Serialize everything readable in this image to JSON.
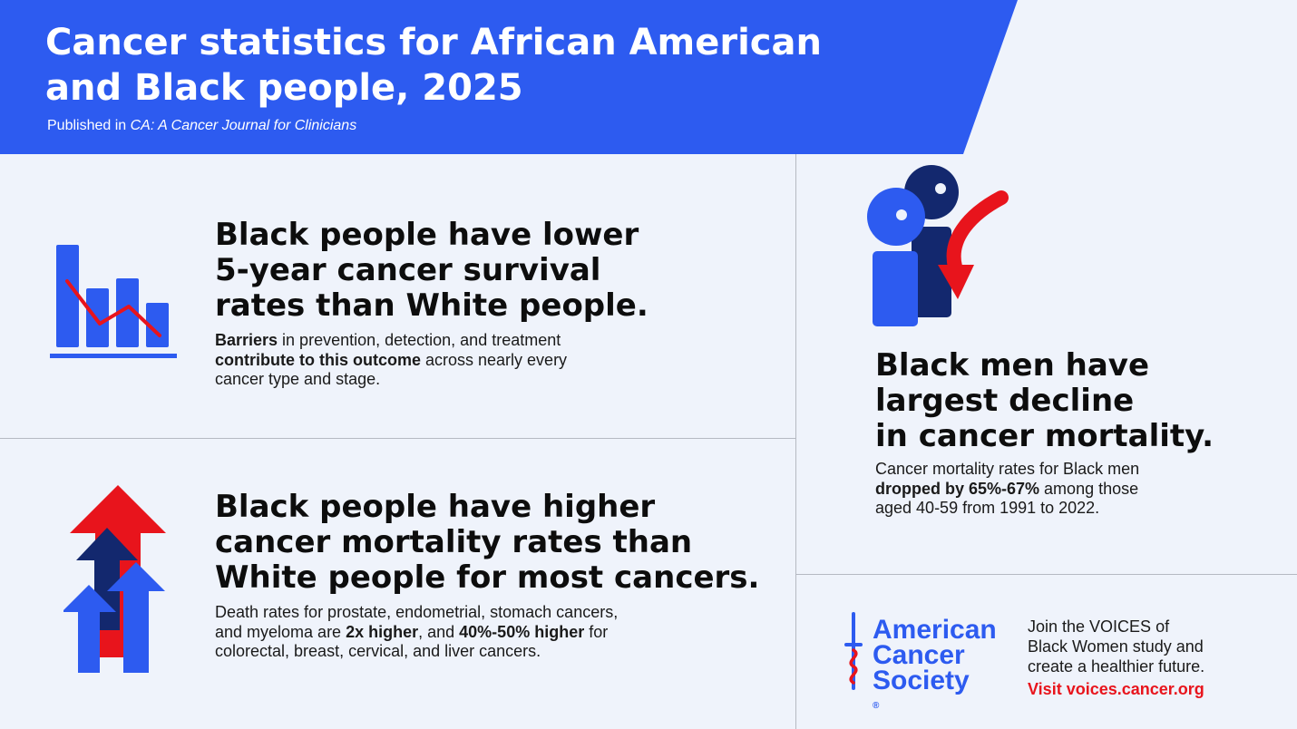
{
  "header": {
    "title_line1": "Cancer statistics for African American",
    "title_line2": "and Black people, 2025",
    "subtitle_prefix": "Published in ",
    "subtitle_journal": "CA: A Cancer Journal for Clinicians"
  },
  "section_survival": {
    "heading_line1": "Black people have lower",
    "heading_line2": "5-year cancer survival",
    "heading_line3": "rates than White people.",
    "body_bold1": "Barriers",
    "body_text1": " in prevention, detection, and treatment",
    "body_bold2": "contribute to this outcome",
    "body_text2": " across nearly every",
    "body_text3": "cancer type and stage."
  },
  "section_mortality": {
    "heading_line1": "Black people have higher",
    "heading_line2": "cancer mortality rates than",
    "heading_line3": "White people for most cancers.",
    "body_text1": "Death rates for prostate, endometrial, stomach cancers,",
    "body_text2": "and myeloma are ",
    "body_bold1": "2x higher",
    "body_text3": ", and ",
    "body_bold2": "40%-50% higher",
    "body_text4": " for",
    "body_text5": "colorectal, breast, cervical, and liver cancers."
  },
  "section_decline": {
    "heading_line1": "Black men have",
    "heading_line2": "largest decline",
    "heading_line3": "in cancer mortality.",
    "body_text1": "Cancer mortality rates for Black men",
    "body_bold1": "dropped by 65%-67%",
    "body_text2": " among those",
    "body_text3": "aged 40-59 from 1991 to 2022."
  },
  "footer": {
    "logo_line1": "American",
    "logo_line2": "Cancer",
    "logo_line3": "Society",
    "logo_reg": "®",
    "cta_line1": "Join the VOICES of",
    "cta_line2": "Black Women study and",
    "cta_line3": "create a healthier future.",
    "cta_link": "Visit voices.cancer.org"
  },
  "icons": {
    "survival": "bar-chart-decline-icon",
    "mortality": "rising-arrows-icon",
    "decline": "people-down-arrow-icon",
    "logo": "sword-snake-icon"
  },
  "colors": {
    "header_bg": "#2d5bf0",
    "page_bg": "#eff3fb",
    "blue": "#2d5bf0",
    "navy": "#13286e",
    "red": "#e8141c",
    "text": "#111111"
  }
}
